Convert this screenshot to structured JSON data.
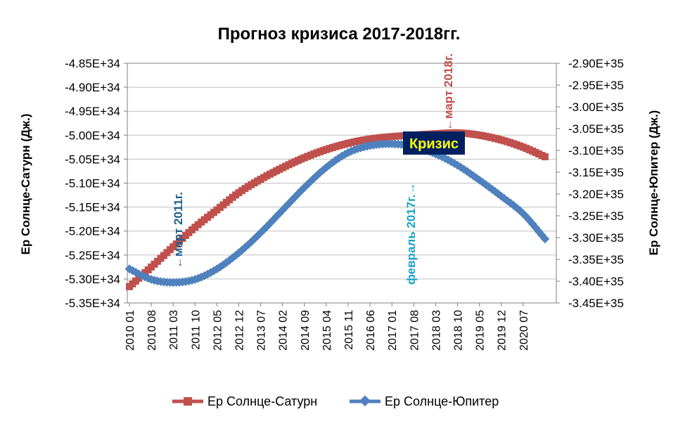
{
  "chart_data": {
    "type": "line",
    "title": "Прогноз кризиса  2017-2018гг.",
    "ylabel_left": "Ер Солнце-Сатурн (Дж.)",
    "ylabel_right": "Ер Солнце-Юпитер (Дж.)",
    "xlabel": "",
    "categories": [
      "2010 01",
      "2010 08",
      "2011 03",
      "2011 10",
      "2012 05",
      "2012 12",
      "2013 07",
      "2014 02",
      "2014 09",
      "2015 04",
      "2015 11",
      "2016 06",
      "2017 01",
      "2017 08",
      "2018 03",
      "2018 10",
      "2019 05",
      "2019 12",
      "2020 07"
    ],
    "left_axis": {
      "ticks": [
        "-4.85E+34",
        "-4.90E+34",
        "-4.95E+34",
        "-5.00E+34",
        "-5.05E+34",
        "-5.10E+34",
        "-5.15E+34",
        "-5.20E+34",
        "-5.25E+34",
        "-5.30E+34",
        "-5.35E+34"
      ],
      "ylim": [
        -5.35e+34,
        -4.85e+34
      ]
    },
    "right_axis": {
      "ticks": [
        "-2.90E+35",
        "-2.95E+35",
        "-3.00E+35",
        "-3.05E+35",
        "-3.10E+35",
        "-3.15E+35",
        "-3.20E+35",
        "-3.25E+35",
        "-3.30E+35",
        "-3.35E+35",
        "-3.40E+35",
        "-3.45E+35"
      ],
      "ylim": [
        -3.45e+35,
        -2.9e+35
      ]
    },
    "grid": true,
    "legend_position": "bottom",
    "series": [
      {
        "name": "Ер Солнце-Сатурн",
        "axis": "left",
        "color": "#C0504D",
        "marker": "square",
        "x": [
          "2010 01",
          "2010 08",
          "2011 03",
          "2011 10",
          "2012 05",
          "2012 12",
          "2013 07",
          "2014 02",
          "2014 09",
          "2015 04",
          "2015 11",
          "2016 06",
          "2017 01",
          "2017 08",
          "2018 03",
          "2018 10",
          "2019 05",
          "2019 12",
          "2020 07",
          "2021 02"
        ],
        "values": [
          -5.316e+34,
          -5.275e+34,
          -5.233e+34,
          -5.192e+34,
          -5.156e+34,
          -5.12e+34,
          -5.092e+34,
          -5.068e+34,
          -5.047e+34,
          -5.03e+34,
          -5.017e+34,
          -5.008e+34,
          -5.003e+34,
          -5e+34,
          -4.997e+34,
          -4.995e+34,
          -5e+34,
          -5.01e+34,
          -5.025e+34,
          -5.045e+34
        ]
      },
      {
        "name": "Ер Солнце-Юпитер",
        "axis": "right",
        "color": "#4F81BD",
        "marker": "diamond",
        "x": [
          "2010 01",
          "2010 08",
          "2011 03",
          "2011 10",
          "2012 05",
          "2012 12",
          "2013 07",
          "2014 02",
          "2014 09",
          "2015 04",
          "2015 11",
          "2016 06",
          "2017 01",
          "2017 08",
          "2018 03",
          "2018 10",
          "2019 05",
          "2019 12",
          "2020 07",
          "2021 02"
        ],
        "values": [
          -3.372e+35,
          -3.396e+35,
          -3.403e+35,
          -3.396e+35,
          -3.372e+35,
          -3.335e+35,
          -3.289e+35,
          -3.237e+35,
          -3.185e+35,
          -3.139e+35,
          -3.105e+35,
          -3.089e+35,
          -3.085e+35,
          -3.091e+35,
          -3.108e+35,
          -3.134e+35,
          -3.168e+35,
          -3.205e+35,
          -3.245e+35,
          -3.303e+35
        ]
      }
    ],
    "annotations": [
      {
        "text": "март 2011г.",
        "arrow": "←",
        "color": "#1F5F8B",
        "x": "2011 03"
      },
      {
        "text": "февраль 2017г.",
        "arrow": "→",
        "color": "#17A2C8",
        "x": "2017 01"
      },
      {
        "text": "март 2018г.",
        "arrow": "←",
        "color": "#C0504D",
        "x": "2018 03"
      },
      {
        "text": "Кризис",
        "box_color": "#002060",
        "text_color": "#FFFF00"
      }
    ]
  },
  "legend": {
    "saturn_label": "Ер Солнце-Сатурн",
    "jupiter_label": "Ер Солнце-Юпитер"
  }
}
